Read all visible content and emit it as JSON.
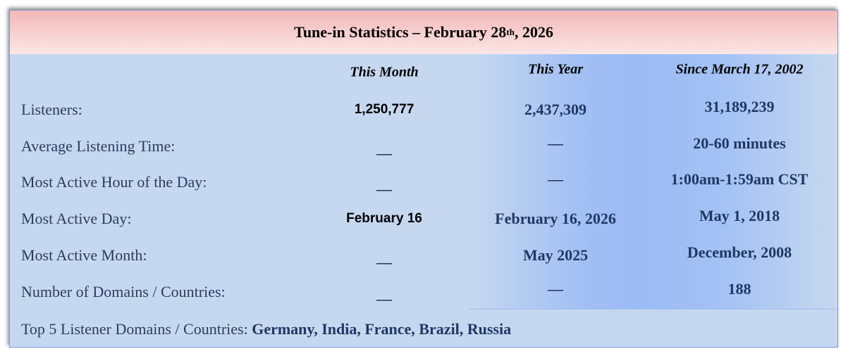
{
  "header": {
    "title_prefix": "Tune-in Statistics –  February 28",
    "title_sup": "th",
    "title_suffix": " , 2026"
  },
  "columns": [
    "This Month",
    "This Year",
    "Since March 17, 2002"
  ],
  "rows": [
    {
      "label": "Listeners:",
      "month": "1,250,777",
      "year": "2,437,309",
      "since": "31,189,239"
    },
    {
      "label": "Average Listening Time:",
      "month": "—",
      "year": "—",
      "since": "20-60 minutes"
    },
    {
      "label": "Most Active Hour of the Day:",
      "month": "—",
      "year": "—",
      "since": "1:00am-1:59am CST"
    },
    {
      "label": "Most Active Day:",
      "month": "February 16",
      "year": "February 16, 2026",
      "since": "May 1, 2018"
    },
    {
      "label": "Most Active Month:",
      "month": "—",
      "year": "May 2025",
      "since": "December, 2008"
    },
    {
      "label": "Number of Domains / Countries:",
      "month": "—",
      "year": "—",
      "since": "188"
    }
  ],
  "top5": {
    "label": "Top 5 Listener Domains / Countries: ",
    "value": "Germany, India, France, Brazil, Russia"
  },
  "colors": {
    "header_top": "#f3b8b8",
    "panel": "#c6d8f0",
    "highlight": "#9cbaf5",
    "value_text": "#1f3864"
  }
}
